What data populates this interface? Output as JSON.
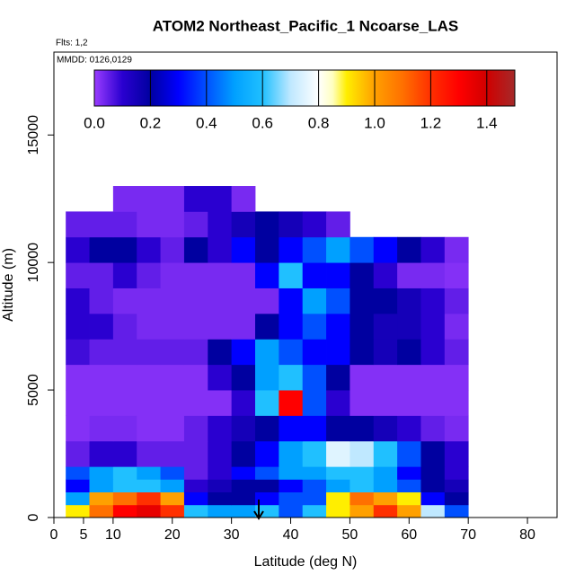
{
  "chart_data": {
    "type": "heatmap",
    "title": "ATOM2 Northeast_Pacific_1 Ncoarse_LAS",
    "annotations": [
      "Flts: 1,2",
      "MMDD: 0126,0129"
    ],
    "xlabel": "Latitude (deg N)",
    "ylabel": "Altitude (m)",
    "xlim": [
      0,
      85
    ],
    "ylim": [
      0,
      18250
    ],
    "xticks": [
      0,
      5,
      10,
      20,
      30,
      40,
      50,
      60,
      70,
      80
    ],
    "yticks": [
      0,
      5000,
      10000,
      15000
    ],
    "xbins": [
      2,
      6,
      10,
      14,
      18,
      22,
      26,
      30,
      34,
      38,
      42,
      46,
      50,
      54,
      58,
      62,
      66,
      70
    ],
    "ybins": [
      0,
      500,
      1000,
      1500,
      2000,
      3000,
      4000,
      5000,
      6000,
      7000,
      8000,
      9000,
      10000,
      11000,
      12000,
      13000
    ],
    "z": [
      [
        0.9,
        1.1,
        1.3,
        1.35,
        1.2,
        0.6,
        0.5,
        0.5,
        0.6,
        0.4,
        0.6,
        0.9,
        1.0,
        1.2,
        1.0,
        0.7,
        0.4
      ],
      [
        0.5,
        1.0,
        1.1,
        1.2,
        1.0,
        0.3,
        0.2,
        0.2,
        0.3,
        0.4,
        0.4,
        0.9,
        1.1,
        1.0,
        0.9,
        0.3,
        0.2
      ],
      [
        0.3,
        0.5,
        0.6,
        0.6,
        0.5,
        0.1,
        0.15,
        0.2,
        0.2,
        0.3,
        0.4,
        0.5,
        0.6,
        0.5,
        0.4,
        0.2,
        0.15
      ],
      [
        0.4,
        0.5,
        0.6,
        0.5,
        0.4,
        0.05,
        0.1,
        0.3,
        0.4,
        0.5,
        0.5,
        0.6,
        0.6,
        0.5,
        0.3,
        0.2,
        0.1
      ],
      [
        0.05,
        0.1,
        0.1,
        0.05,
        0.05,
        0.05,
        0.1,
        0.2,
        0.3,
        0.5,
        0.6,
        0.75,
        0.7,
        0.6,
        0.4,
        0.2,
        0.1
      ],
      [
        0.02,
        0.03,
        0.03,
        0.02,
        0.02,
        0.05,
        0.1,
        0.15,
        0.2,
        0.3,
        0.3,
        0.2,
        0.2,
        0.15,
        0.1,
        0.05,
        0.03
      ],
      [
        0.02,
        0.02,
        0.02,
        0.02,
        0.02,
        0.02,
        0.02,
        0.1,
        0.6,
        1.3,
        0.4,
        0.1,
        0.02,
        0.02,
        0.02,
        0.02,
        0.02
      ],
      [
        0.02,
        0.02,
        0.02,
        0.02,
        0.02,
        0.02,
        0.1,
        0.2,
        0.5,
        0.6,
        0.4,
        0.2,
        0.02,
        0.02,
        0.02,
        0.02,
        0.02
      ],
      [
        0.08,
        0.05,
        0.05,
        0.05,
        0.05,
        0.05,
        0.2,
        0.3,
        0.5,
        0.4,
        0.3,
        0.3,
        0.2,
        0.15,
        0.2,
        0.1,
        0.05
      ],
      [
        0.1,
        0.1,
        0.05,
        0.03,
        0.03,
        0.03,
        0.03,
        0.03,
        0.2,
        0.3,
        0.4,
        0.3,
        0.2,
        0.15,
        0.15,
        0.1,
        0.03
      ],
      [
        0.1,
        0.05,
        0.03,
        0.03,
        0.03,
        0.03,
        0.03,
        0.03,
        0.03,
        0.3,
        0.5,
        0.4,
        0.2,
        0.2,
        0.15,
        0.1,
        0.05
      ],
      [
        0.05,
        0.05,
        0.1,
        0.05,
        0.03,
        0.03,
        0.03,
        0.03,
        0.3,
        0.6,
        0.3,
        0.3,
        0.2,
        0.1,
        0.03,
        0.03,
        0.02
      ],
      [
        0.1,
        0.2,
        0.2,
        0.1,
        0.05,
        0.2,
        0.1,
        0.3,
        0.2,
        0.3,
        0.4,
        0.5,
        0.4,
        0.3,
        0.2,
        0.1,
        0.03
      ],
      [
        0.05,
        0.05,
        0.05,
        0.03,
        0.03,
        0.05,
        0.1,
        0.15,
        0.2,
        0.15,
        0.1,
        0.05,
        null,
        null,
        null,
        null,
        null
      ],
      [
        null,
        null,
        0.03,
        0.03,
        0.03,
        0.1,
        0.1,
        0.03,
        null,
        null,
        null,
        null,
        null,
        null,
        null,
        null,
        null
      ]
    ],
    "clim": [
      0,
      1.5
    ],
    "cticks": [
      {
        "value": 0,
        "label": "0.0"
      },
      0.2,
      0.4,
      0.6,
      0.8,
      {
        "value": 1,
        "label": "1.0"
      },
      1.2,
      1.4
    ],
    "colorscale": [
      [
        0,
        "#9a3cff"
      ],
      [
        0.1,
        "#2a00d0"
      ],
      [
        0.2,
        "#0000a0"
      ],
      [
        0.3,
        "#0000ff"
      ],
      [
        0.4,
        "#0050ff"
      ],
      [
        0.5,
        "#00a0ff"
      ],
      [
        0.6,
        "#20c0ff"
      ],
      [
        0.7,
        "#bfe8ff"
      ],
      [
        0.8,
        "#ffffff"
      ],
      [
        0.85,
        "#ffffc0"
      ],
      [
        0.9,
        "#ffee00"
      ],
      [
        1.0,
        "#ffa000"
      ],
      [
        1.1,
        "#ff7000"
      ],
      [
        1.2,
        "#ff3000"
      ],
      [
        1.3,
        "#ff0000"
      ],
      [
        1.4,
        "#d00000"
      ],
      [
        1.5,
        "#a52a2a"
      ]
    ]
  }
}
